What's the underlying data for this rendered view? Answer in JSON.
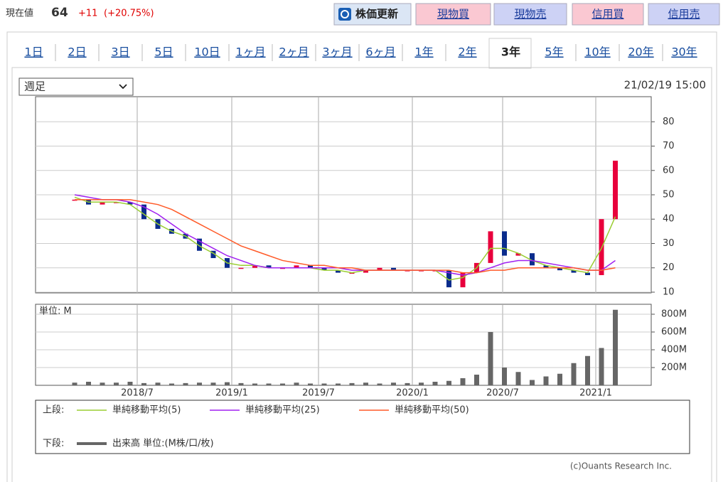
{
  "header": {
    "label": "現在値",
    "price": "64",
    "change": "+11",
    "change_pct": "(+20.75%)"
  },
  "buttons": [
    "株価更新",
    "現物買",
    "現物売",
    "信用買",
    "信用売"
  ],
  "tabs": [
    "1日",
    "2日",
    "3日",
    "5日",
    "10日",
    "1ヶ月",
    "2ヶ月",
    "3ヶ月",
    "6ヶ月",
    "1年",
    "2年",
    "3年",
    "5年",
    "10年",
    "20年",
    "30年"
  ],
  "active_tab": "3年",
  "select": "週足",
  "timestamp": "21/02/19 15:00",
  "chart_data": [
    {
      "type": "candlestick",
      "values": [
        48,
        46,
        47,
        47,
        46,
        40,
        36,
        34,
        32,
        27,
        24,
        20,
        20,
        21,
        20,
        20,
        21,
        20,
        19,
        18,
        18,
        19,
        20,
        19,
        19,
        19,
        19,
        12,
        18,
        22,
        35,
        25,
        26,
        21,
        20,
        19,
        18,
        17,
        40,
        64
      ],
      "up_color": "#e8003c",
      "down_color": "#0a2c8c",
      "series": [
        {
          "name": "単純移動平均(5)",
          "color": "#9acd32",
          "values": [
            49,
            47,
            47,
            47,
            46,
            42,
            38,
            35,
            33,
            29,
            26,
            22,
            21,
            21,
            20,
            20,
            20,
            20,
            19,
            19,
            18,
            19,
            19,
            19,
            19,
            19,
            19,
            15,
            16,
            20,
            28,
            28,
            26,
            23,
            21,
            20,
            19,
            18,
            28,
            41
          ]
        },
        {
          "name": "単純移動平均(25)",
          "color": "#a020f0",
          "values": [
            50,
            49,
            48,
            48,
            47,
            45,
            42,
            38,
            34,
            31,
            28,
            25,
            23,
            21,
            20,
            20,
            20,
            20,
            20,
            20,
            19,
            19,
            19,
            19,
            19,
            19,
            19,
            18,
            17,
            18,
            20,
            22,
            23,
            23,
            22,
            21,
            20,
            19,
            19,
            23
          ]
        },
        {
          "name": "単純移動平均(50)",
          "color": "#ff5a28",
          "values": [
            48,
            48,
            48,
            48,
            48,
            47,
            46,
            44,
            41,
            38,
            35,
            32,
            29,
            27,
            25,
            23,
            22,
            21,
            21,
            20,
            20,
            19,
            19,
            19,
            19,
            19,
            19,
            19,
            18,
            18,
            19,
            19,
            20,
            20,
            20,
            20,
            20,
            19,
            19,
            20
          ]
        }
      ],
      "ylim": [
        9.7,
        90.3
      ],
      "yticks": [
        10,
        20,
        30,
        40,
        50,
        60,
        70,
        80
      ],
      "grid": true
    },
    {
      "type": "bar",
      "unit_label": "単位: M",
      "color": "#666666",
      "values": [
        30,
        40,
        30,
        30,
        40,
        25,
        30,
        20,
        25,
        30,
        30,
        35,
        25,
        20,
        20,
        20,
        30,
        20,
        20,
        20,
        25,
        30,
        20,
        30,
        25,
        30,
        40,
        50,
        80,
        120,
        600,
        200,
        150,
        60,
        100,
        130,
        250,
        330,
        420,
        850
      ],
      "ylim": [
        0,
        912
      ],
      "yticks": [
        {
          "value": 200,
          "label": "200M"
        },
        {
          "value": 400,
          "label": "400M"
        },
        {
          "value": 600,
          "label": "600M"
        },
        {
          "value": 800,
          "label": "800M"
        }
      ],
      "x_labels": [
        "2018/7",
        "2019/1",
        "2019/7",
        "2020/1",
        "2020/7",
        "2021/1"
      ],
      "grid": true
    }
  ],
  "legend": {
    "upper": "上段:",
    "lower": "下段:",
    "lower_item": "出来高 単位:(M株/口/枚)"
  },
  "copyright": "(c)Ouants Research Inc."
}
